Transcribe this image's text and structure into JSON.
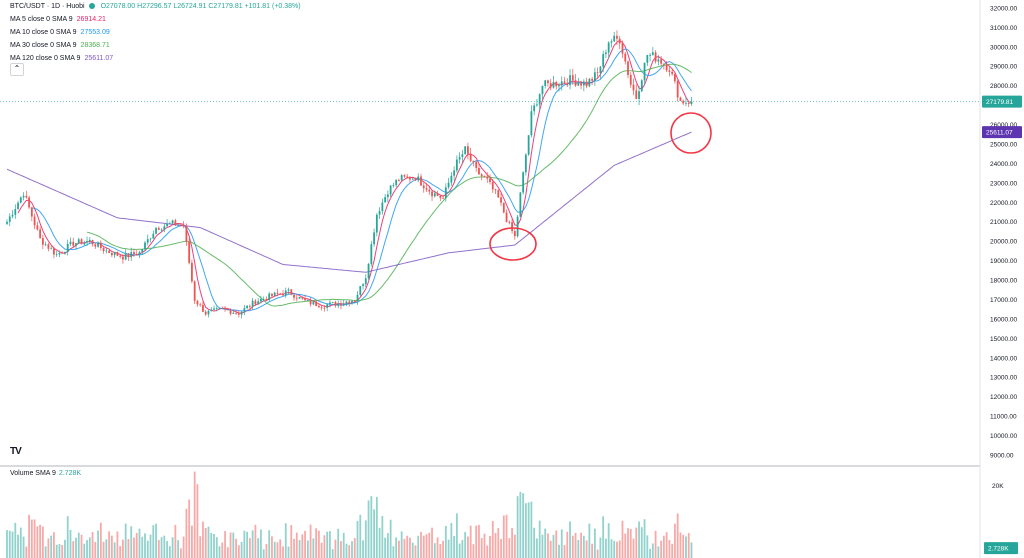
{
  "header": {
    "symbol": "BTC/USDT · 1D · Huobi",
    "ohlc": "O27078.00 H27296.57 L26724.91 C27179.81 +101.81 (+0.38%)",
    "collapse_icon": "chevron-up-icon",
    "ma_rows": [
      {
        "label": "MA 5 close 0 SMA 9",
        "value": "26914.21",
        "color": "#e91e63"
      },
      {
        "label": "MA 10 close 0 SMA 9",
        "value": "27553.09",
        "color": "#2196f3"
      },
      {
        "label": "MA 30 close 0 SMA 9",
        "value": "28368.71",
        "color": "#4caf50"
      },
      {
        "label": "MA 120 close 0 SMA 9",
        "value": "25611.07",
        "color": "#7e57c2"
      }
    ]
  },
  "volume": {
    "label": "Volume SMA 9",
    "value": "2.728K",
    "axis_labels": [
      "20K",
      "2.728K"
    ],
    "axis_values": [
      20000,
      2728
    ]
  },
  "badges": {
    "last_price": "27179.81",
    "ma120": "25611.07"
  },
  "colors": {
    "up": "#26a69a",
    "down": "#ef5350",
    "annotation": "#f23645"
  },
  "chart_data": {
    "type": "candlestick",
    "ylim": [
      9000,
      32000
    ],
    "yticks": [
      "9000.00",
      "10000.00",
      "11000.00",
      "12000.00",
      "13000.00",
      "14000.00",
      "15000.00",
      "16000.00",
      "17000.00",
      "18000.00",
      "19000.00",
      "20000.00",
      "21000.00",
      "22000.00",
      "23000.00",
      "24000.00",
      "25000.00",
      "26000.00",
      "27000.00",
      "28000.00",
      "29000.00",
      "30000.00",
      "31000.00",
      "32000.00"
    ],
    "price_anchors": [
      [
        0,
        21000
      ],
      [
        6,
        22500
      ],
      [
        12,
        20100
      ],
      [
        18,
        19300
      ],
      [
        24,
        19900
      ],
      [
        30,
        20000
      ],
      [
        36,
        19500
      ],
      [
        42,
        19200
      ],
      [
        48,
        19400
      ],
      [
        54,
        20700
      ],
      [
        60,
        20900
      ],
      [
        64,
        20800
      ],
      [
        68,
        17000
      ],
      [
        72,
        16300
      ],
      [
        78,
        16500
      ],
      [
        84,
        16300
      ],
      [
        90,
        16900
      ],
      [
        96,
        17200
      ],
      [
        102,
        17400
      ],
      [
        108,
        16900
      ],
      [
        114,
        16700
      ],
      [
        120,
        16800
      ],
      [
        126,
        17000
      ],
      [
        130,
        18200
      ],
      [
        134,
        21400
      ],
      [
        138,
        22600
      ],
      [
        142,
        23200
      ],
      [
        148,
        23300
      ],
      [
        154,
        22500
      ],
      [
        158,
        22200
      ],
      [
        162,
        23800
      ],
      [
        166,
        24700
      ],
      [
        170,
        23600
      ],
      [
        174,
        23100
      ],
      [
        178,
        22200
      ],
      [
        182,
        20800
      ],
      [
        184,
        20200
      ],
      [
        186,
        22400
      ],
      [
        190,
        26500
      ],
      [
        194,
        28000
      ],
      [
        198,
        28100
      ],
      [
        204,
        28300
      ],
      [
        210,
        28100
      ],
      [
        214,
        28600
      ],
      [
        218,
        30300
      ],
      [
        222,
        30400
      ],
      [
        226,
        28100
      ],
      [
        228,
        27400
      ],
      [
        232,
        29600
      ],
      [
        236,
        29400
      ],
      [
        240,
        28900
      ],
      [
        244,
        27200
      ],
      [
        248,
        27179.81
      ]
    ],
    "ma120": [
      [
        0,
        23700
      ],
      [
        40,
        21200
      ],
      [
        70,
        20700
      ],
      [
        100,
        18800
      ],
      [
        130,
        18400
      ],
      [
        160,
        19400
      ],
      [
        184,
        19800
      ],
      [
        220,
        23900
      ],
      [
        248,
        25611.07
      ]
    ],
    "annotations": [
      {
        "type": "ellipse",
        "name": "ma120-touch-low"
      },
      {
        "type": "circle",
        "name": "ma120-touch-recent"
      }
    ]
  }
}
